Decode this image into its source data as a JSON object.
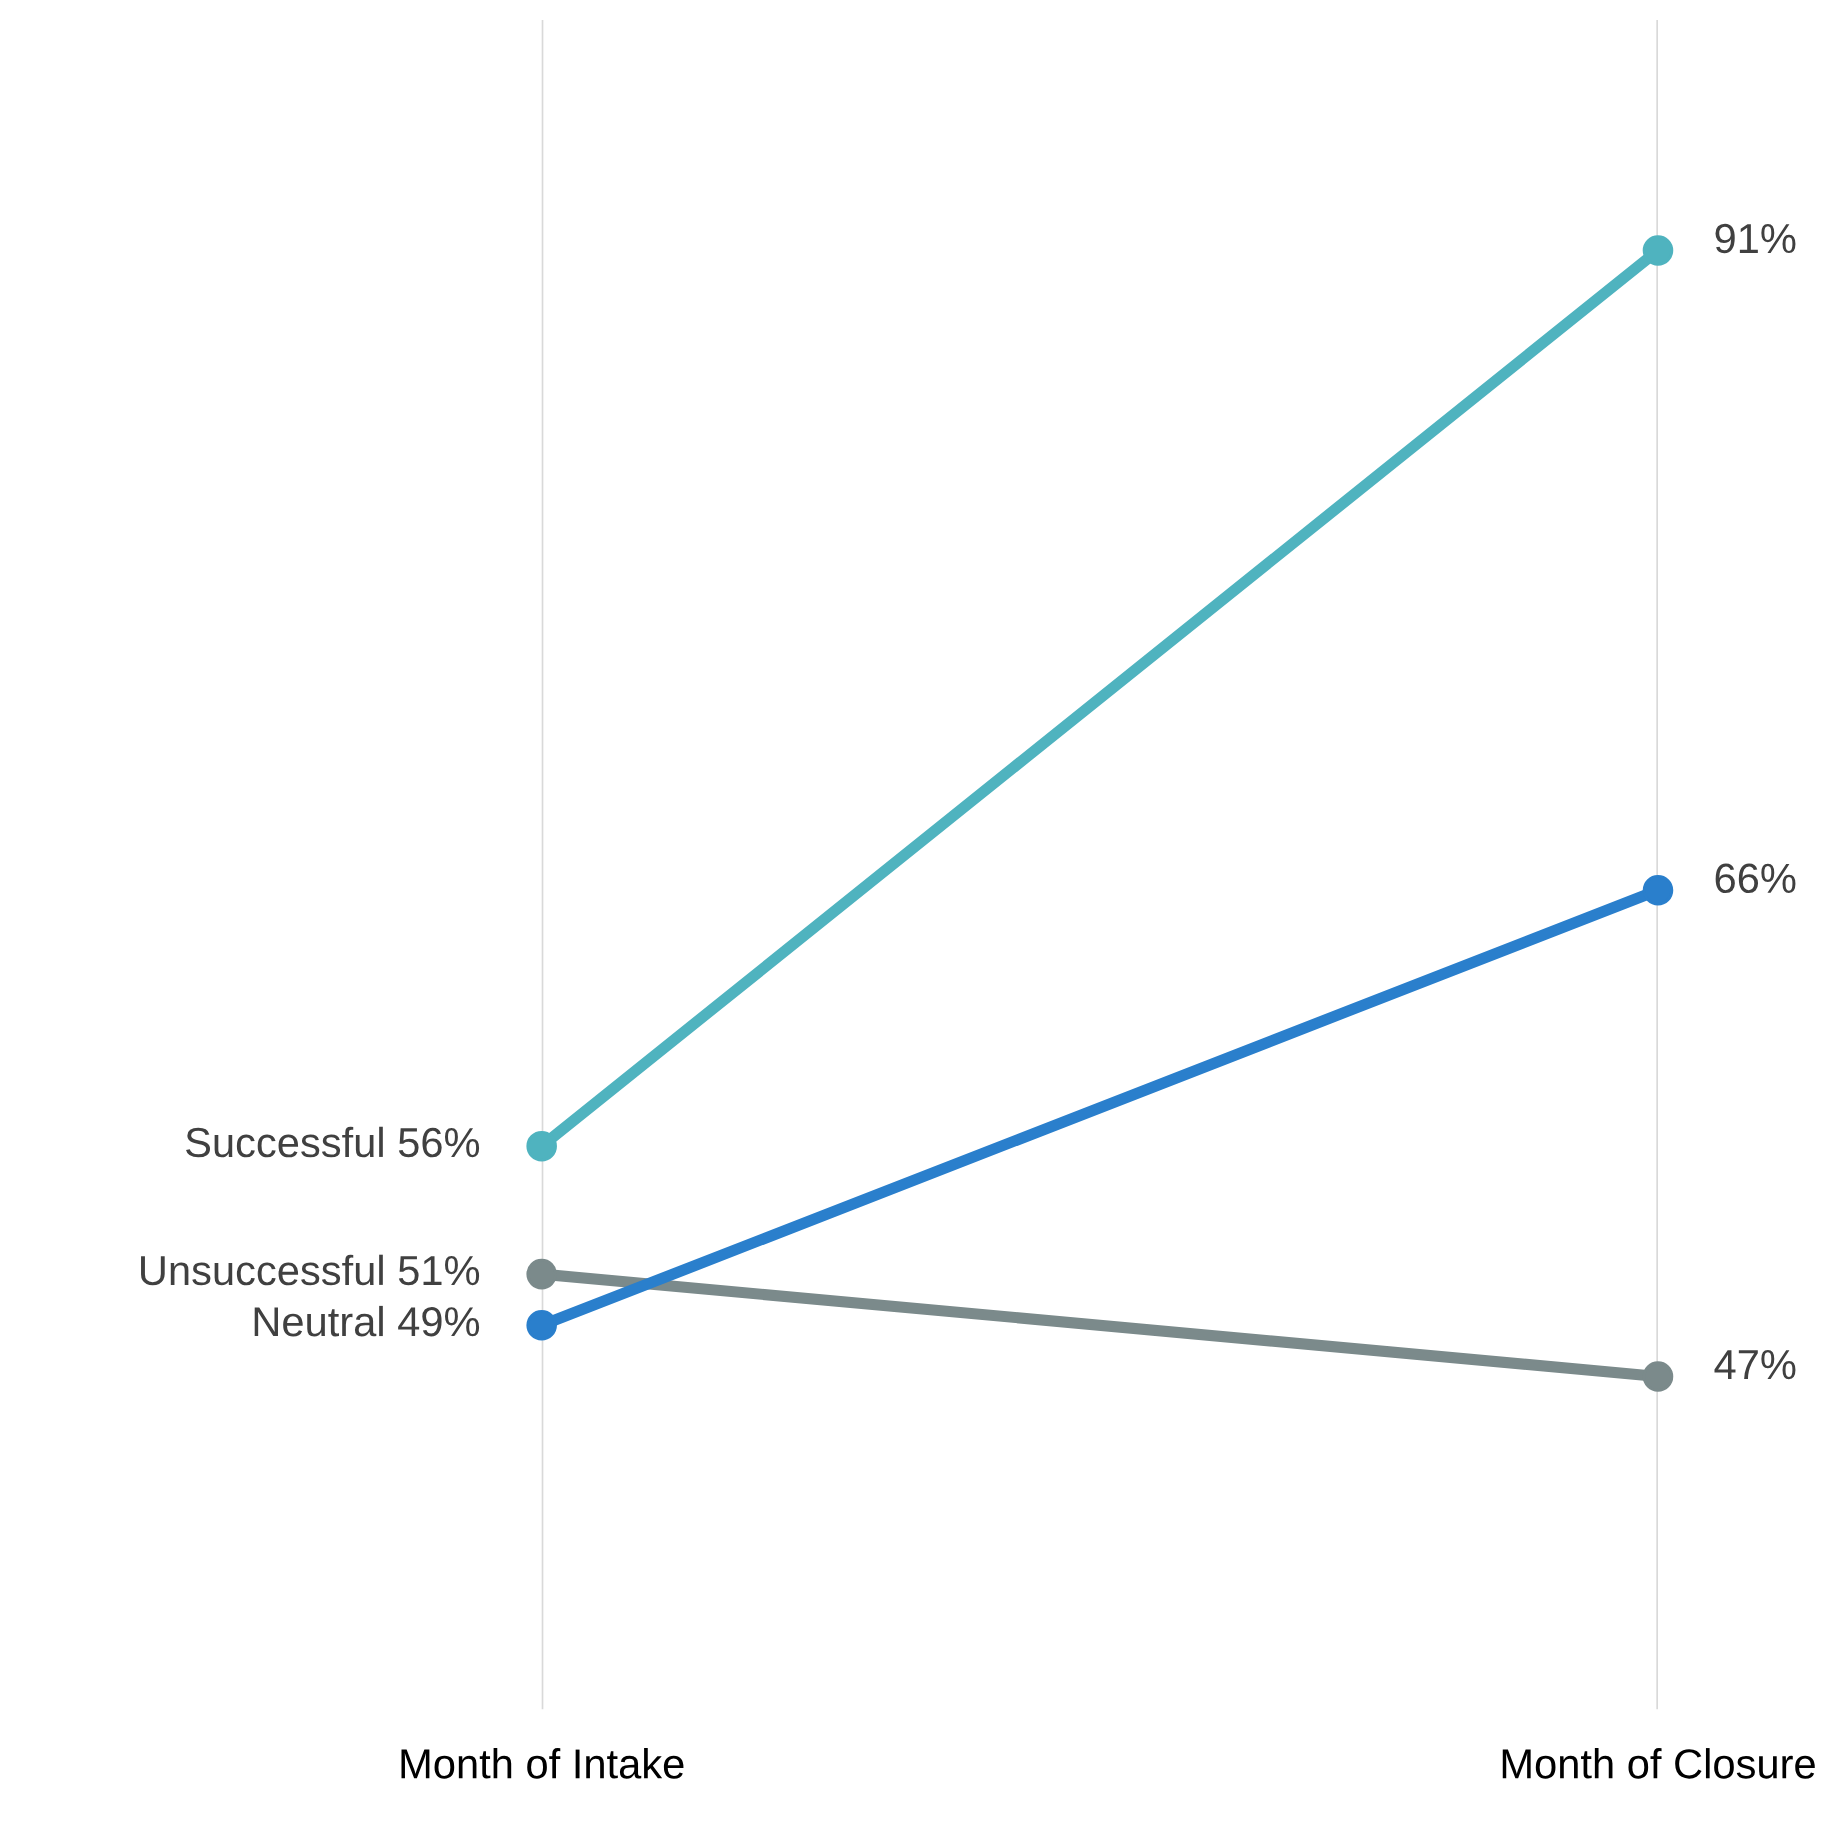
{
  "chart_data": {
    "type": "line",
    "categories": [
      "Month of Intake",
      "Month of Closure"
    ],
    "series": [
      {
        "name": "Successful",
        "color": "#4fb3bf",
        "values": [
          56,
          91
        ],
        "value_labels": [
          "56%",
          "91%"
        ]
      },
      {
        "name": "Unsuccessful",
        "color": "#7b8a8b",
        "values": [
          51,
          47
        ],
        "value_labels": [
          "51%",
          "47%"
        ]
      },
      {
        "name": "Neutral",
        "color": "#2a7fcc",
        "values": [
          49,
          66
        ],
        "value_labels": [
          "49%",
          "66%"
        ]
      }
    ],
    "ylim": [
      34,
      100
    ],
    "grid": "x",
    "marker": "circle",
    "line_style": "solid",
    "legend": false,
    "tick_labels": "x"
  }
}
